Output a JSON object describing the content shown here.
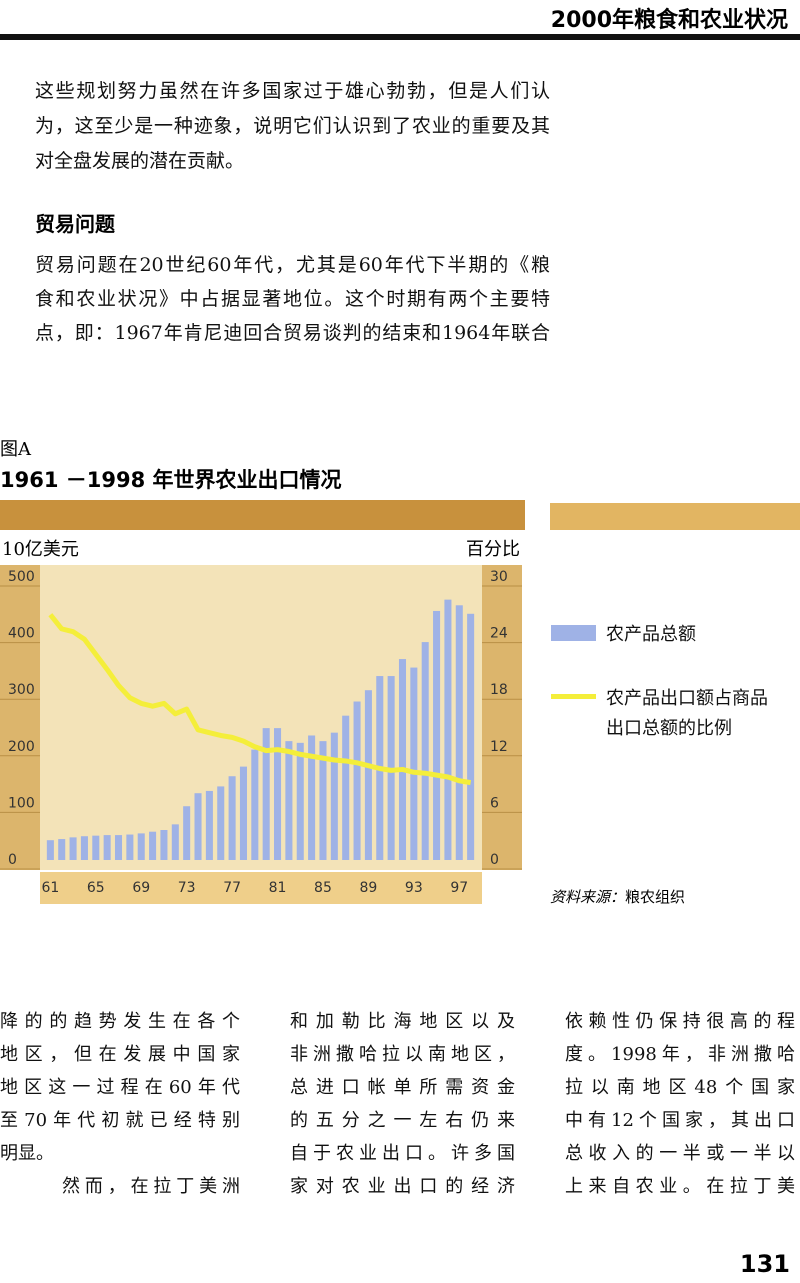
{
  "header": {
    "title": "2000年粮食和农业状况"
  },
  "intro": {
    "lines": [
      "这些规划努力虽然在许多国家过于雄心勃勃，但是人们认",
      "为，这至少是一种迹象，说明它们认识到了农业的重要及其",
      "对全盘发展的潜在贡献。"
    ]
  },
  "section": {
    "heading": "贸易问题",
    "lines": [
      "贸易问题在20世纪60年代，尤其是60年代下半期的《粮",
      "食和农业状况》中占据显著地位。这个时期有两个主要特",
      "点，即：1967年肯尼迪回合贸易谈判的结束和1964年联合"
    ]
  },
  "figure": {
    "label": "图A",
    "source_label": "资料来源：",
    "source_text": "粮农组织"
  },
  "chart_data": {
    "type": "bar-line",
    "title": "1961 －1998 年世界农业出口情况",
    "y_label": "10亿美元",
    "y2_label": "百分比",
    "x": [
      61,
      62,
      63,
      64,
      65,
      66,
      67,
      68,
      69,
      70,
      71,
      72,
      73,
      74,
      75,
      76,
      77,
      78,
      79,
      80,
      81,
      82,
      83,
      84,
      85,
      86,
      87,
      88,
      89,
      90,
      91,
      92,
      93,
      94,
      95,
      96,
      97,
      98
    ],
    "xlim": [
      60,
      99
    ],
    "xticks": [
      61,
      65,
      69,
      73,
      77,
      81,
      85,
      89,
      93,
      97
    ],
    "ylim": [
      0,
      500
    ],
    "yticks": [
      0,
      100,
      200,
      300,
      400,
      500
    ],
    "y2lim": [
      0,
      30
    ],
    "y2ticks": [
      0,
      6,
      12,
      18,
      24,
      30
    ],
    "series": [
      {
        "name": "农产品总额",
        "color": "#9fb2e6",
        "kind": "bar",
        "values": [
          35,
          37,
          40,
          42,
          43,
          44,
          44,
          45,
          47,
          50,
          53,
          63,
          95,
          118,
          122,
          130,
          148,
          165,
          195,
          233,
          233,
          210,
          207,
          220,
          210,
          225,
          255,
          280,
          300,
          325,
          325,
          355,
          340,
          385,
          440,
          460,
          450,
          435
        ]
      },
      {
        "name": "农产品出口额占商品出口总额的比例",
        "color": "#f4ee3a",
        "kind": "line",
        "axis": "y2",
        "values": [
          26.0,
          24.5,
          24.2,
          23.4,
          21.8,
          20.2,
          18.5,
          17.2,
          16.6,
          16.3,
          16.6,
          15.5,
          16.0,
          13.8,
          13.5,
          13.2,
          13.0,
          12.6,
          12.0,
          11.6,
          11.7,
          11.5,
          11.2,
          11.0,
          10.8,
          10.6,
          10.5,
          10.3,
          10.0,
          9.7,
          9.5,
          9.6,
          9.3,
          9.2,
          9.0,
          8.8,
          8.4,
          8.2
        ]
      }
    ]
  },
  "columns": [
    {
      "lines": [
        "降的的趋势发生在各个",
        "地区，但在发展中国家",
        "地区这一过程在60年代",
        "至70年代初就已经特别",
        "明显。",
        "然而，在拉丁美洲"
      ]
    },
    {
      "lines": [
        "和加勒比海地区以及",
        "非洲撒哈拉以南地区，",
        "总进口帐单所需资金",
        "的五分之一左右仍来",
        "自于农业出口。许多国",
        "家对农业出口的经济"
      ]
    },
    {
      "lines": [
        "依赖性仍保持很高的程",
        "度。1998年，非洲撒哈",
        "拉以南地区48个国家",
        "中有12个国家，其出口",
        "总收入的一半或一半以",
        "上来自农业。在拉丁美"
      ]
    }
  ],
  "page_number": "131"
}
